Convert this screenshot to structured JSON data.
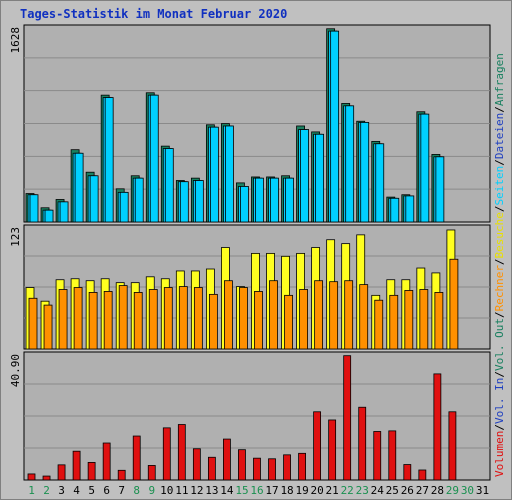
{
  "title": "Tages-Statistik im Monat Februar 2020",
  "colors": {
    "background": "#c0c0c0",
    "plot_background": "#b0b0b0",
    "title": "#1030c0",
    "anfragen": "#1a8060",
    "dateien": "#00d0ff",
    "seiten": "#00d0ff",
    "besuche": "#ffff20",
    "rechner": "#ff9000",
    "volumen": "#e01010",
    "weekend_day": "#1a9050",
    "weekday": "#000000"
  },
  "chart_data": [
    {
      "type": "bar",
      "panel": "top",
      "ymax_label": "1628",
      "ylim": [
        0,
        1628
      ],
      "x": [
        1,
        2,
        3,
        4,
        5,
        6,
        7,
        8,
        9,
        10,
        11,
        12,
        13,
        14,
        15,
        16,
        17,
        18,
        19,
        20,
        21,
        22,
        23,
        24,
        25,
        26,
        27,
        28,
        29,
        30,
        31
      ],
      "series": [
        {
          "name": "Anfragen",
          "values": [
            240,
            120,
            190,
            610,
            420,
            1070,
            280,
            390,
            1090,
            640,
            350,
            370,
            820,
            830,
            330,
            380,
            380,
            390,
            810,
            760,
            1630,
            1000,
            850,
            680,
            210,
            230,
            930,
            570,
            0,
            0,
            0
          ]
        },
        {
          "name": "Dateien",
          "values": [
            230,
            100,
            170,
            580,
            390,
            1050,
            250,
            370,
            1070,
            620,
            340,
            350,
            800,
            810,
            300,
            370,
            370,
            370,
            780,
            740,
            1610,
            980,
            840,
            660,
            200,
            220,
            910,
            550,
            0,
            0,
            0
          ]
        },
        {
          "name": "Seiten",
          "values": [
            230,
            100,
            170,
            580,
            390,
            1050,
            250,
            370,
            1070,
            620,
            340,
            350,
            800,
            810,
            300,
            370,
            370,
            370,
            780,
            740,
            1610,
            980,
            840,
            660,
            200,
            220,
            910,
            550,
            0,
            0,
            0
          ]
        }
      ]
    },
    {
      "type": "bar",
      "panel": "middle",
      "ymax_label": "123",
      "ylim": [
        0,
        123
      ],
      "x": [
        1,
        2,
        3,
        4,
        5,
        6,
        7,
        8,
        9,
        10,
        11,
        12,
        13,
        14,
        15,
        16,
        17,
        18,
        19,
        20,
        21,
        22,
        23,
        24,
        25,
        26,
        27,
        28,
        29,
        30,
        31
      ],
      "series": [
        {
          "name": "Besuche",
          "values": [
            63,
            49,
            71,
            72,
            70,
            72,
            68,
            68,
            74,
            72,
            80,
            80,
            82,
            104,
            64,
            98,
            98,
            95,
            98,
            104,
            112,
            108,
            117,
            55,
            71,
            71,
            83,
            78,
            122,
            0,
            0
          ]
        },
        {
          "name": "Rechner",
          "values": [
            52,
            45,
            61,
            63,
            58,
            59,
            65,
            58,
            61,
            63,
            64,
            63,
            56,
            70,
            63,
            59,
            70,
            55,
            61,
            70,
            69,
            70,
            66,
            50,
            55,
            60,
            61,
            58,
            92,
            0,
            0
          ]
        }
      ]
    },
    {
      "type": "bar",
      "panel": "bottom",
      "ymax_label": "40.90",
      "ylim": [
        0,
        40.9
      ],
      "x": [
        1,
        2,
        3,
        4,
        5,
        6,
        7,
        8,
        9,
        10,
        11,
        12,
        13,
        14,
        15,
        16,
        17,
        18,
        19,
        20,
        21,
        22,
        23,
        24,
        25,
        26,
        27,
        28,
        29,
        30,
        31
      ],
      "series": [
        {
          "name": "Volumen",
          "values": [
            2.0,
            1.3,
            5.0,
            9.5,
            5.8,
            12.2,
            3.2,
            14.5,
            4.8,
            17.2,
            18.3,
            10.3,
            7.5,
            13.5,
            10.0,
            7.2,
            7.0,
            8.3,
            8.8,
            22.5,
            19.8,
            41.0,
            24.0,
            16.0,
            16.2,
            5.1,
            3.3,
            35.0,
            22.5,
            0,
            0
          ]
        }
      ]
    }
  ],
  "legend_right": {
    "volumen": "Volumen",
    "vol_in": "Vol. In",
    "vol_out": "Vol. Out",
    "rechner": "Rechner",
    "besuche": "Besuche",
    "seiten": "Seiten",
    "dateien": "Dateien",
    "anfragen": "Anfragen",
    "sep": "/"
  },
  "weekend_days": [
    1,
    2,
    8,
    9,
    15,
    16,
    22,
    23,
    29,
    30
  ]
}
